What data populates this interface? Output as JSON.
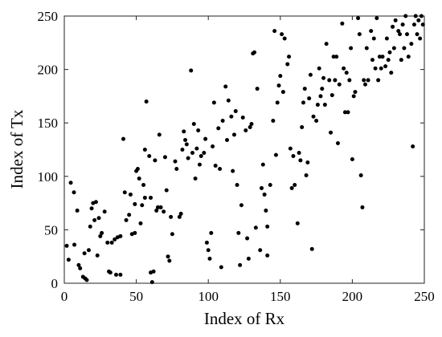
{
  "chart_data": {
    "type": "scatter",
    "xlabel": "Index of Rx",
    "ylabel": "Index of Tx",
    "color": "#000000",
    "xlim": [
      0,
      250
    ],
    "ylim": [
      0,
      250
    ],
    "xticks": [
      0,
      50,
      100,
      150,
      200,
      250
    ],
    "yticks": [
      0,
      50,
      100,
      150,
      200,
      250
    ],
    "x": [
      1.7,
      3,
      4.5,
      6.7,
      7,
      9,
      10,
      11,
      13,
      14.5,
      15.6,
      14,
      17,
      18,
      19,
      20,
      21,
      22,
      24,
      25,
      23,
      26,
      28,
      30,
      31,
      32,
      33,
      35,
      36,
      37,
      39,
      39,
      41,
      42,
      43,
      45,
      46,
      47,
      49,
      49,
      50,
      51,
      52,
      53,
      54,
      55,
      56,
      56,
      57,
      59,
      60,
      60,
      61,
      62,
      63,
      64,
      65,
      66,
      67,
      69,
      70,
      71,
      72,
      73,
      74,
      75,
      77,
      78,
      80,
      81,
      82,
      83,
      84,
      85,
      86,
      88,
      89,
      90,
      91,
      92,
      93,
      94,
      95,
      97,
      98,
      99,
      100,
      101,
      102,
      103,
      104,
      105,
      107,
      108,
      109,
      110,
      112,
      113,
      114,
      116,
      117,
      118,
      119,
      120,
      121,
      122,
      123,
      124,
      126,
      127,
      128,
      129,
      130,
      131,
      132,
      133,
      134,
      136,
      137,
      138,
      139,
      140,
      141,
      141,
      143,
      145,
      146,
      147,
      148,
      149,
      150,
      151,
      152,
      153,
      155,
      156,
      157,
      158,
      159,
      160,
      162,
      163,
      164,
      165,
      166,
      167,
      168,
      169,
      170,
      171,
      172,
      173,
      175,
      176,
      177,
      178,
      179,
      180,
      181,
      182,
      184,
      185,
      186,
      187,
      188,
      189,
      190,
      191,
      193,
      194,
      195,
      196,
      197,
      198,
      199,
      200,
      201,
      202,
      204,
      205,
      206,
      207,
      208,
      209,
      210,
      211,
      213,
      214,
      215,
      216,
      217,
      218,
      219,
      220,
      221,
      223,
      224,
      225,
      226,
      227,
      228,
      229,
      230,
      232,
      233,
      234,
      235,
      236,
      237,
      238,
      239,
      241,
      242,
      243,
      244,
      245,
      246,
      247,
      248,
      249
    ],
    "y": [
      35,
      22,
      94,
      85,
      36,
      68,
      17,
      14,
      6,
      4.5,
      3,
      28,
      31,
      53,
      70,
      75,
      59,
      76,
      61,
      44,
      26,
      47,
      67,
      38,
      11,
      10,
      38,
      41,
      8,
      43,
      8,
      44,
      135,
      85,
      59,
      64,
      83,
      46,
      74,
      47,
      105,
      107,
      98,
      56,
      73,
      92,
      80,
      125,
      170,
      119,
      80,
      10,
      1,
      11,
      115,
      68,
      71,
      139,
      71,
      67,
      118,
      87,
      25,
      21,
      62,
      46,
      114,
      107,
      62,
      65,
      125,
      142,
      134,
      130,
      117,
      199,
      122,
      149,
      98,
      126,
      143,
      111,
      119,
      122,
      135,
      38,
      31,
      23,
      47,
      128,
      169,
      110,
      145,
      107,
      15,
      152,
      184,
      134,
      171,
      156,
      105,
      139,
      161,
      92,
      47,
      17,
      73,
      155,
      143,
      42,
      23,
      146,
      149,
      215,
      216,
      52,
      182,
      31,
      89,
      111,
      83,
      68,
      53,
      26,
      92,
      152,
      236,
      120,
      169,
      185,
      194,
      233,
      179,
      229,
      205,
      212,
      126,
      89,
      119,
      92,
      56,
      122,
      115,
      146,
      169,
      182,
      101,
      113,
      173,
      195,
      32,
      156,
      152,
      167,
      201,
      175,
      182,
      192,
      167,
      224,
      190,
      141,
      176,
      212,
      190,
      212,
      131,
      186,
      243,
      201,
      160,
      197,
      160,
      190,
      220,
      116,
      175,
      179,
      248,
      233,
      101,
      71,
      190,
      186,
      220,
      190,
      236,
      209,
      229,
      201,
      248,
      190,
      212,
      201,
      212,
      203,
      229,
      209,
      216,
      197,
      240,
      220,
      246,
      236,
      233,
      209,
      242,
      220,
      250,
      233,
      212,
      224,
      128,
      242,
      250,
      233,
      246,
      229,
      250,
      242
    ]
  }
}
